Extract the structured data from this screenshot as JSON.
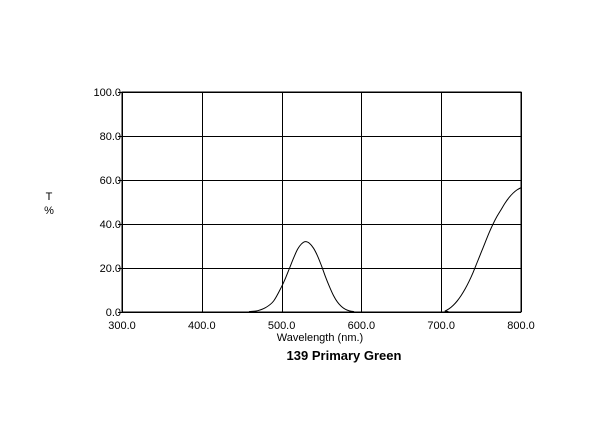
{
  "chart_data": {
    "type": "line",
    "title": "139 Primary Green",
    "xlabel": "Wavelength (nm.)",
    "ylabel_lines": [
      "T",
      "%"
    ],
    "xlim": [
      300,
      800
    ],
    "ylim": [
      0,
      100
    ],
    "xticks": [
      300,
      400,
      500,
      600,
      700,
      800
    ],
    "yticks": [
      0,
      20,
      40,
      60,
      80,
      100
    ],
    "xtick_labels": [
      "300.0",
      "400.0",
      "500.0",
      "600.0",
      "700.0",
      "800.0"
    ],
    "ytick_labels": [
      "0.0",
      "20.0",
      "40.0",
      "60.0",
      "80.0",
      "100.0"
    ],
    "grid": true,
    "line_color": "#000000",
    "series": [
      {
        "x": [
          300,
          450,
          460,
          470,
          480,
          490,
          500,
          505,
          510,
          515,
          520,
          525,
          530,
          535,
          540,
          545,
          550,
          555,
          560,
          565,
          570,
          575,
          580,
          585,
          590,
          600,
          700,
          705,
          710,
          715,
          720,
          725,
          730,
          735,
          740,
          745,
          750,
          755,
          760,
          765,
          770,
          775,
          780,
          785,
          790,
          795,
          800
        ],
        "y": [
          0,
          0,
          0.2,
          0.6,
          2.0,
          5.0,
          11.5,
          15.5,
          20.0,
          24.5,
          28.5,
          31.0,
          32.0,
          31.2,
          29.0,
          25.5,
          21.0,
          16.0,
          11.5,
          7.5,
          4.5,
          2.5,
          1.2,
          0.5,
          0.2,
          0,
          0,
          0.5,
          1.5,
          3.0,
          5.0,
          7.5,
          10.5,
          14.0,
          18.0,
          22.5,
          27.0,
          31.5,
          36.0,
          40.0,
          43.5,
          46.5,
          49.5,
          52.0,
          54.0,
          55.5,
          56.5
        ]
      }
    ]
  }
}
